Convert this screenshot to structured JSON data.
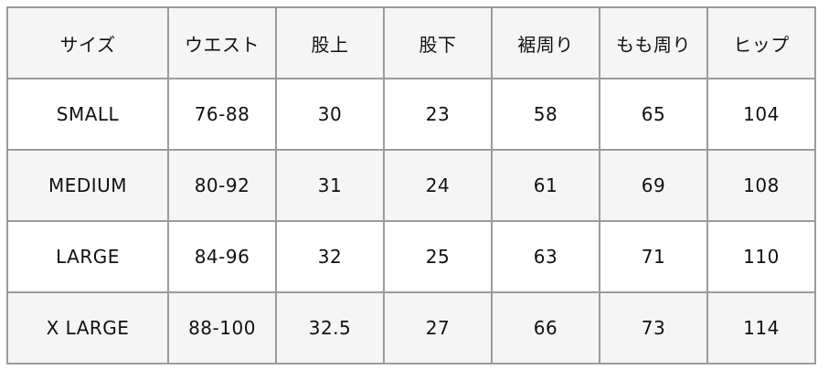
{
  "table": {
    "headers": [
      "サイズ",
      "ウエスト",
      "股上",
      "股下",
      "裾周り",
      "もも周り",
      "ヒップ"
    ],
    "rows": [
      [
        "SMALL",
        "76-88",
        "30",
        "23",
        "58",
        "65",
        "104"
      ],
      [
        "MEDIUM",
        "80-92",
        "31",
        "24",
        "61",
        "69",
        "108"
      ],
      [
        "LARGE",
        "84-96",
        "32",
        "25",
        "63",
        "71",
        "110"
      ],
      [
        "X LARGE",
        "88-100",
        "32.5",
        "27",
        "66",
        "73",
        "114"
      ]
    ]
  },
  "colors": {
    "border": "#9b9b9b",
    "header_bg": "#f5f5f5",
    "alt_row_bg": "#f5f5f5"
  }
}
